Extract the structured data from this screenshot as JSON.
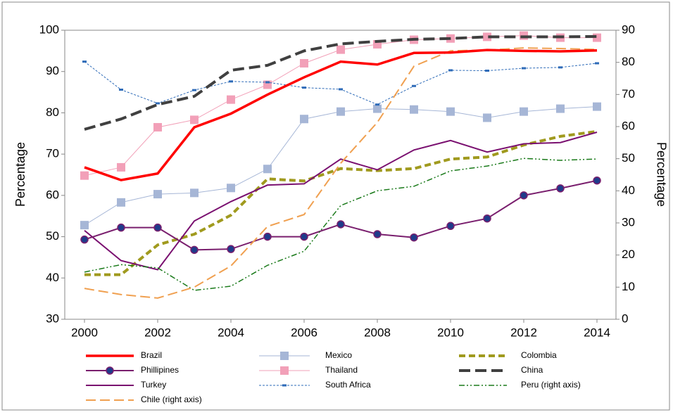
{
  "chart_data": {
    "type": "line",
    "x": [
      2000,
      2001,
      2002,
      2003,
      2004,
      2005,
      2006,
      2007,
      2008,
      2009,
      2010,
      2011,
      2012,
      2013,
      2014
    ],
    "xlim": [
      2000,
      2014
    ],
    "xticks": [
      2000,
      2002,
      2004,
      2006,
      2008,
      2010,
      2012,
      2014
    ],
    "ylim": [
      30,
      100
    ],
    "yticks": [
      30,
      40,
      50,
      60,
      70,
      80,
      90,
      100
    ],
    "y2lim": [
      0,
      90
    ],
    "y2ticks": [
      0,
      10,
      20,
      30,
      40,
      50,
      60,
      70,
      80,
      90
    ],
    "ylabel": "Percentage",
    "y2label": "Percentage",
    "series": [
      {
        "name": "Brazil",
        "color": "#ff0000",
        "values": [
          66.8,
          63.7,
          65.3,
          76.5,
          79.8,
          84.4,
          88.6,
          92.4,
          91.7,
          94.5,
          94.6,
          95.2,
          95.0,
          94.9,
          95.1
        ]
      },
      {
        "name": "Mexico",
        "color": "#a6b6d6",
        "values": [
          52.8,
          58.3,
          60.3,
          60.6,
          61.8,
          66.4,
          78.5,
          80.3,
          81.0,
          80.8,
          80.3,
          78.8,
          80.3,
          81.0,
          81.5
        ]
      },
      {
        "name": "Colombia",
        "color": "#a09a1e",
        "values": [
          40.8,
          40.8,
          48.0,
          50.6,
          55.2,
          64.0,
          63.5,
          66.5,
          66.0,
          66.5,
          68.8,
          69.3,
          72.2,
          74.3,
          75.5
        ]
      },
      {
        "name": "Phillipines",
        "color": "#7a1f6e",
        "values": [
          49.3,
          52.2,
          52.2,
          46.8,
          47.0,
          50.0,
          50.0,
          53.0,
          50.6,
          49.8,
          52.6,
          54.4,
          60.0,
          61.7,
          63.6
        ]
      },
      {
        "name": "Thailand",
        "color": "#f2a0b8",
        "values": [
          64.8,
          66.8,
          76.5,
          78.3,
          83.2,
          86.8,
          92.0,
          95.3,
          96.6,
          97.7,
          98.0,
          98.4,
          98.7,
          98.2,
          98.2
        ]
      },
      {
        "name": "China",
        "color": "#404040",
        "values": [
          76.0,
          78.5,
          82.0,
          84.0,
          90.3,
          91.5,
          95.0,
          96.7,
          97.3,
          97.8,
          98.0,
          98.4,
          98.4,
          98.4,
          98.5
        ]
      },
      {
        "name": "Turkey",
        "color": "#7a1070",
        "values": [
          51.5,
          44.2,
          42.0,
          53.8,
          58.5,
          62.5,
          62.8,
          68.8,
          66.2,
          71.0,
          73.3,
          70.5,
          72.5,
          72.8,
          75.3
        ]
      },
      {
        "name": "South Africa",
        "color": "#2e6bb8",
        "values": [
          92.4,
          85.6,
          82.3,
          85.5,
          87.6,
          87.4,
          86.1,
          85.7,
          82.0,
          86.5,
          90.3,
          90.2,
          90.8,
          91.0,
          92.0
        ]
      },
      {
        "name": "Peru (right axis)",
        "color": "#1a7a1a",
        "axis": "y2",
        "values": [
          14.7,
          17.0,
          16.0,
          9.0,
          10.3,
          16.8,
          21.2,
          35.4,
          40.0,
          41.4,
          46.2,
          47.7,
          50.1,
          49.5,
          49.9
        ]
      },
      {
        "name": "Chile (right axis)",
        "color": "#f0a050",
        "axis": "y2",
        "values": [
          9.6,
          7.7,
          6.6,
          10.0,
          16.6,
          28.9,
          32.6,
          48.6,
          61.3,
          78.8,
          83.6,
          83.8,
          84.5,
          84.3,
          84.0
        ]
      }
    ]
  }
}
